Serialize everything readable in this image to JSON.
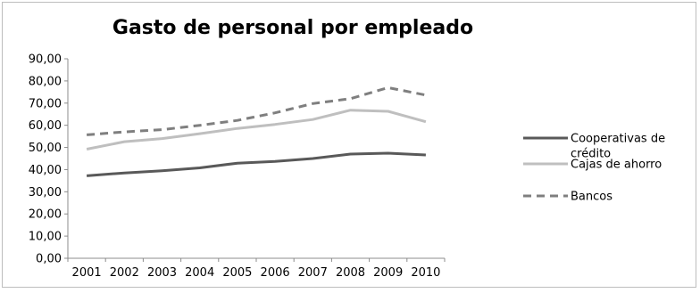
{
  "chart_data": {
    "type": "line",
    "title": "Gasto de personal por empleado",
    "categories": [
      "2001",
      "2002",
      "2003",
      "2004",
      "2005",
      "2006",
      "2007",
      "2008",
      "2009",
      "2010"
    ],
    "y_ticks": [
      "0,00",
      "10,00",
      "20,00",
      "30,00",
      "40,00",
      "50,00",
      "60,00",
      "70,00",
      "80,00",
      "90,00"
    ],
    "ylim": [
      0,
      90
    ],
    "grid": false,
    "legend_position": "right",
    "series": [
      {
        "name": "Cooperativas de crédito",
        "legend_lines": [
          "Cooperativas de",
          "crédito"
        ],
        "color": "#595959",
        "dash": "solid",
        "values": [
          37.2,
          38.5,
          39.5,
          40.8,
          42.9,
          43.7,
          45.0,
          47.0,
          47.4,
          46.6
        ]
      },
      {
        "name": "Cajas de ahorro",
        "legend_lines": [
          "Cajas de ahorro"
        ],
        "color": "#bfbfbf",
        "dash": "solid",
        "values": [
          49.2,
          52.6,
          54.0,
          56.2,
          58.6,
          60.4,
          62.6,
          66.8,
          66.3,
          61.6
        ]
      },
      {
        "name": "Bancos",
        "legend_lines": [
          "Bancos"
        ],
        "color": "#7f7f7f",
        "dash": "dashed",
        "values": [
          55.7,
          57.0,
          58.0,
          60.0,
          62.2,
          65.6,
          69.8,
          72.0,
          77.0,
          73.6
        ]
      }
    ]
  }
}
